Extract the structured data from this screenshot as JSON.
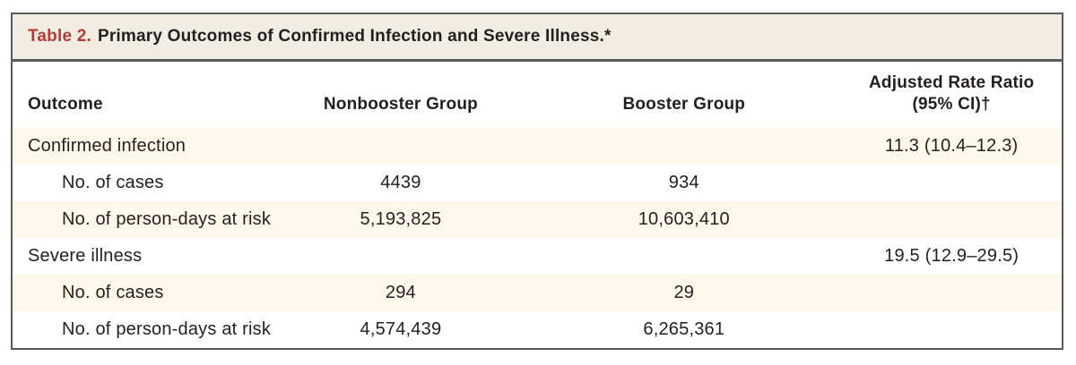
{
  "title": {
    "label": "Table 2.",
    "text": "Primary Outcomes of Confirmed Infection and Severe Illness.*"
  },
  "colors": {
    "accent_red": "#b43b35",
    "title_bar_background": "#f1ede2",
    "row_stripe": "#fdf8e9",
    "border_gray": "#5a5b5d",
    "text": "#231f20"
  },
  "table": {
    "columns": [
      {
        "label": "Outcome"
      },
      {
        "label": "Nonbooster Group"
      },
      {
        "label": "Booster Group"
      },
      {
        "label": "Adjusted Rate Ratio",
        "label2": "(95% CI)†"
      }
    ],
    "rows": [
      {
        "outcome": "Confirmed infection",
        "nonbooster": "",
        "booster": "",
        "ratio": "11.3 (10.4–12.3)"
      },
      {
        "outcome": "No. of cases",
        "nonbooster": "4439",
        "booster": "934",
        "ratio": ""
      },
      {
        "outcome": "No. of person-days at risk",
        "nonbooster": "5,193,825",
        "booster": "10,603,410",
        "ratio": ""
      },
      {
        "outcome": "Severe illness",
        "nonbooster": "",
        "booster": "",
        "ratio": "19.5 (12.9–29.5)"
      },
      {
        "outcome": "No. of cases",
        "nonbooster": "294",
        "booster": "29",
        "ratio": ""
      },
      {
        "outcome": "No. of person-days at risk",
        "nonbooster": "4,574,439",
        "booster": "6,265,361",
        "ratio": ""
      }
    ]
  }
}
